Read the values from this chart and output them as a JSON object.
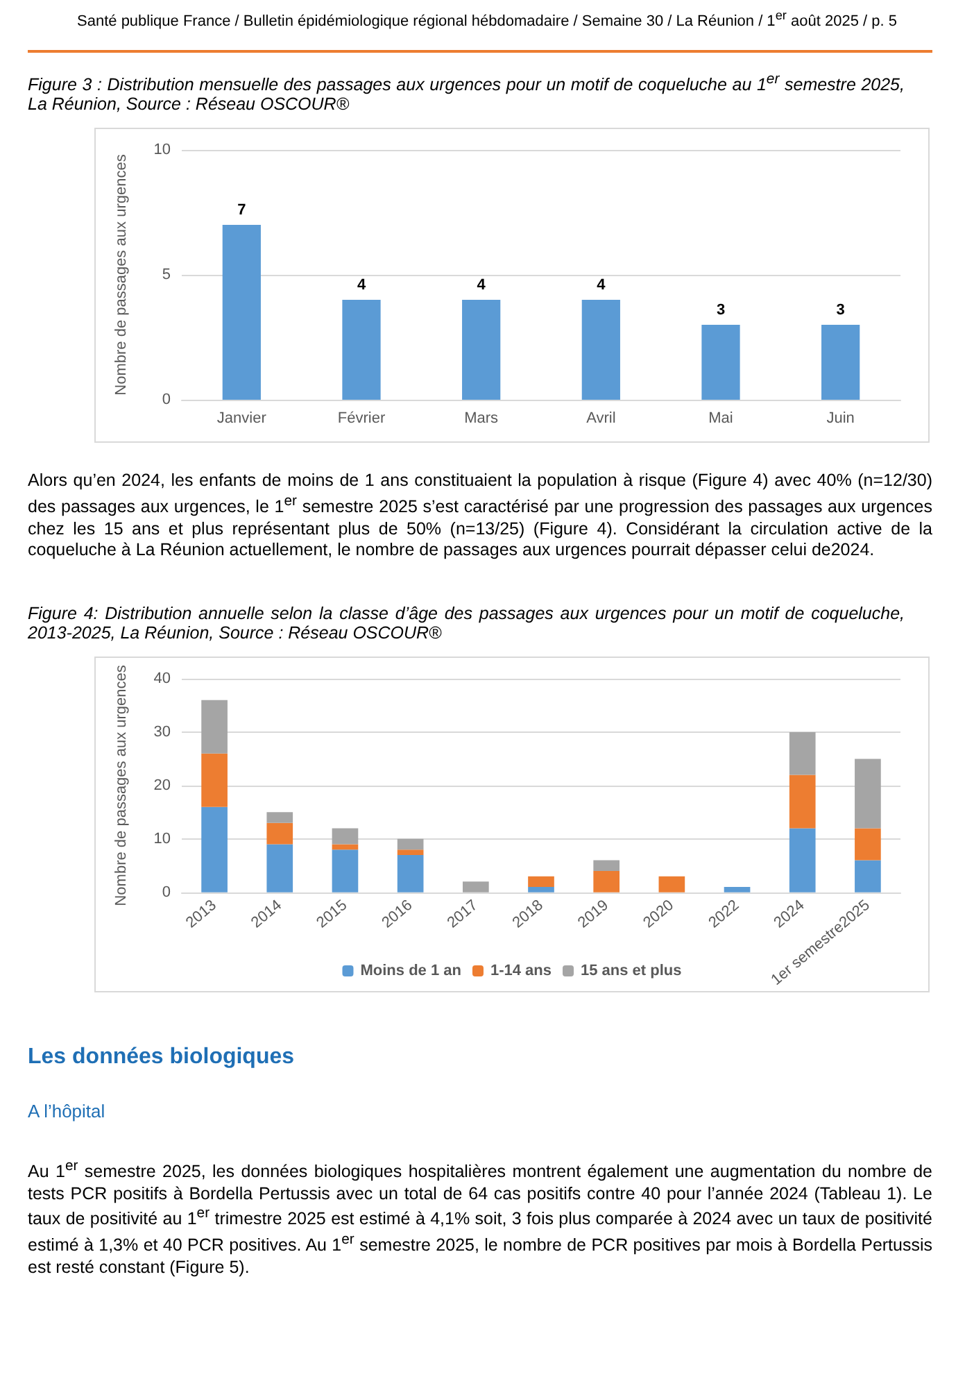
{
  "chart_data": [
    {
      "type": "bar",
      "title": "Figure 3 : Distribution mensuelle des passages aux urgences pour un motif de coqueluche au 1$^{er}$ semestre 2025, La Réunion, Source : Réseau OSCOUR®",
      "ylabel": "Nombre de passages aux urgences",
      "categories": [
        "Janvier",
        "Février",
        "Mars",
        "Avril",
        "Mai",
        "Juin"
      ],
      "values": [
        7,
        4,
        4,
        4,
        3,
        3
      ],
      "color": "#5b9bd5",
      "data_labels": true,
      "ylim": [
        0,
        10
      ],
      "yticks": [
        0,
        5,
        10
      ],
      "grid": "y",
      "annotations": [
        "Santé publique France / Bulletin épidémiologique régional hébdomadaire / Semaine 30 / La Réunion / 1$^{er}$ août 2025 / p. 5",
        "Alors qu’en 2024, les enfants de moins de 1 ans constituaient la population à risque (Figure 4) avec 40% (n=12/30) des passages aux urgences, le 1$^{er}$ semestre 2025 s’est caractérisé par une progression des passages aux urgences chez les 15 ans et plus représentant plus de 50% (n=13/25) (Figure 4). Considérant la circulation active de la coqueluche à La Réunion actuellement, le nombre de passages aux urgences pourrait dépasser celui de2024."
      ]
    },
    {
      "type": "bar",
      "title": "Figure 4: Distribution annuelle selon la classe d’âge des passages aux urgences pour un motif de coqueluche, 2013-2025, La Réunion,  Source : Réseau OSCOUR®",
      "ylabel": "Nombre de passages aux urgences",
      "categories": [
        "2013",
        "2014",
        "2015",
        "2016",
        "2017",
        "2018",
        "2019",
        "2020",
        "2022",
        "2024",
        "1er semestre2025"
      ],
      "stacked": true,
      "series": [
        {
          "name": "Moins de 1 an",
          "color": "#5b9bd5",
          "values": [
            16,
            9,
            8,
            7,
            0,
            1,
            0,
            0,
            1,
            12,
            6
          ]
        },
        {
          "name": "1-14 ans",
          "color": "#ed7d31",
          "values": [
            10,
            4,
            1,
            1,
            0,
            2,
            4,
            3,
            0,
            10,
            6
          ]
        },
        {
          "name": "15 ans et plus",
          "color": "#a5a5a5",
          "values": [
            10,
            2,
            3,
            2,
            2,
            0,
            2,
            0,
            0,
            8,
            13
          ]
        }
      ],
      "ylim": [
        0,
        40
      ],
      "yticks": [
        0,
        10,
        20,
        30,
        40
      ],
      "grid": "y",
      "legend": "bottom",
      "annotations": [
        "Les données biologiques",
        "A l’hôpital",
        "Au 1$^{er}$ semestre 2025, les données biologiques hospitalières montrent également une augmentation du nombre de tests PCR positifs à Bordella Pertussis avec un total de 64 cas positifs contre 40 pour l’année 2024 (Tableau 1). Le taux de positivité au 1$^{er}$ trimestre 2025 est estimé à 4,1% soit, 3 fois plus comparée à 2024 avec un taux de positivité estimé à 1,3% et 40 PCR positives. Au 1$^{er}$ semestre 2025, le nombre de PCR positives par mois à Bordella Pertussis est resté constant (Figure 5)."
      ]
    }
  ]
}
